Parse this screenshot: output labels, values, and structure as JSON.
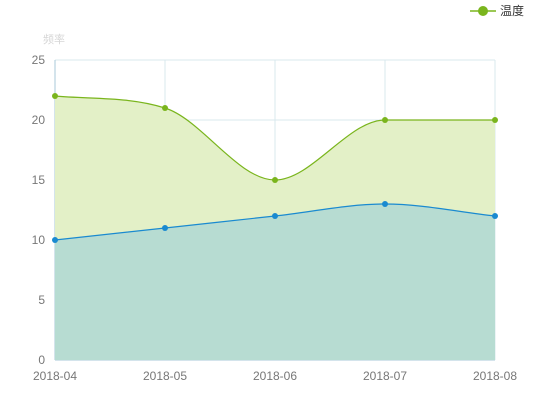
{
  "chart_data": {
    "type": "area",
    "categories": [
      "2018-04",
      "2018-05",
      "2018-06",
      "2018-07",
      "2018-08"
    ],
    "series": [
      {
        "name": "温度",
        "values": [
          22,
          21,
          15,
          20,
          20
        ],
        "color": "#7ab51d",
        "fill": "#e3f0c7",
        "smooth": true,
        "in_legend": true
      },
      {
        "values": [
          10,
          11,
          12,
          13,
          12
        ],
        "color": "#1a8ad0",
        "fill": "#b7dcd2",
        "smooth": true,
        "in_legend": false
      }
    ],
    "ylabel": "频率",
    "ylim": [
      0,
      25
    ],
    "yticks": [
      0,
      5,
      10,
      15,
      20,
      25
    ],
    "grid": true,
    "legend_position": "top-right",
    "axis_color": "#a9c8d8",
    "grid_color": "#d8e8ee",
    "label_color": "#777777"
  }
}
